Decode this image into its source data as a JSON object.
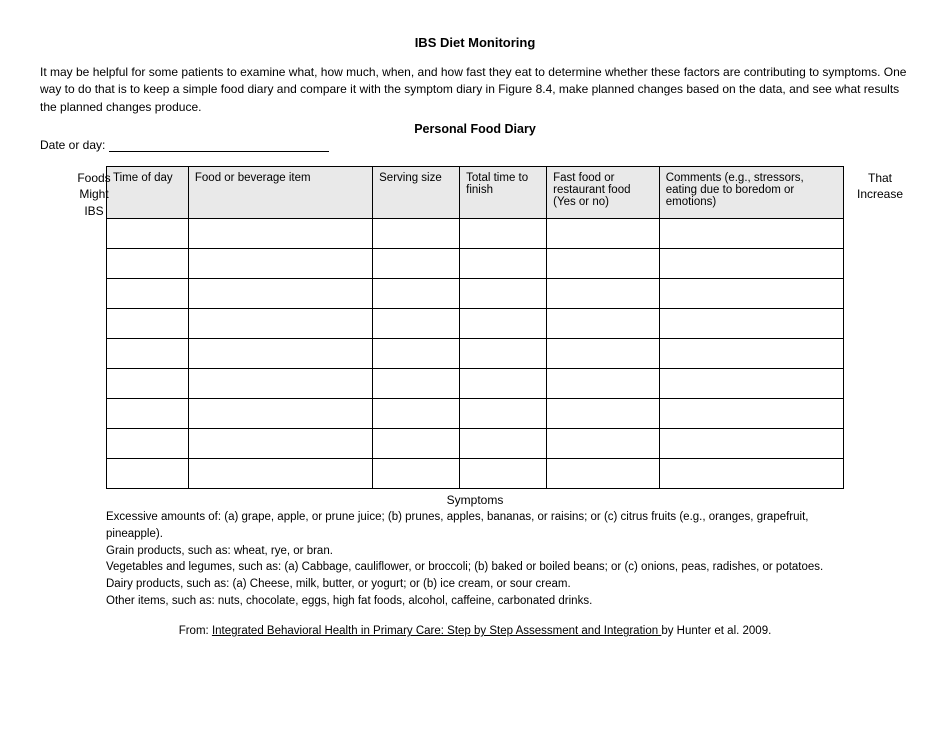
{
  "title": "IBS Diet Monitoring",
  "intro": "It may be helpful for some patients to examine what, how much, when, and how fast they eat to determine whether these factors are contributing to symptoms. One way to do that is to keep a simple food diary and compare it with the symptom diary in Figure 8.4, make planned changes based on the data, and see what results the planned changes produce.",
  "subtitle": "Personal Food Diary",
  "date_label": "Date or day:",
  "marginal_left_l1": "Foods",
  "marginal_left_l2": "Might",
  "marginal_left_l3": "IBS",
  "marginal_right_l1": "That",
  "marginal_right_l2": "Increase",
  "columns": {
    "time": "Time of day",
    "food": "Food or beverage item",
    "serving": "Serving size",
    "total": "Total time to finish",
    "fast": "Fast food or restaurant food (Yes or no)",
    "comments": "Comments (e.g., stressors, eating due to boredom or emotions)"
  },
  "row_count": 9,
  "symptoms_head": "Symptoms",
  "symptom_lines": {
    "l1": "Excessive amounts of: (a) grape, apple, or prune juice; (b) prunes, apples, bananas, or raisins; or (c) citrus fruits (e.g., oranges, grapefruit, pineapple).",
    "l2": "Grain products, such as: wheat, rye, or bran.",
    "l3": "Vegetables and legumes, such as: (a) Cabbage, cauliflower, or broccoli; (b) baked or boiled beans; or (c) onions, peas, radishes, or potatoes.",
    "l4": "Dairy products, such as: (a) Cheese, milk, butter, or yogurt; or (b) ice cream, or sour cream.",
    "l5": "Other items, such as: nuts, chocolate, eggs, high fat foods, alcohol, caffeine, carbonated drinks."
  },
  "attribution_prefix": "From: ",
  "attribution_title": "Integrated Behavioral Health in Primary Care: Step by Step Assessment and Integration ",
  "attribution_suffix": "by Hunter et al. 2009."
}
